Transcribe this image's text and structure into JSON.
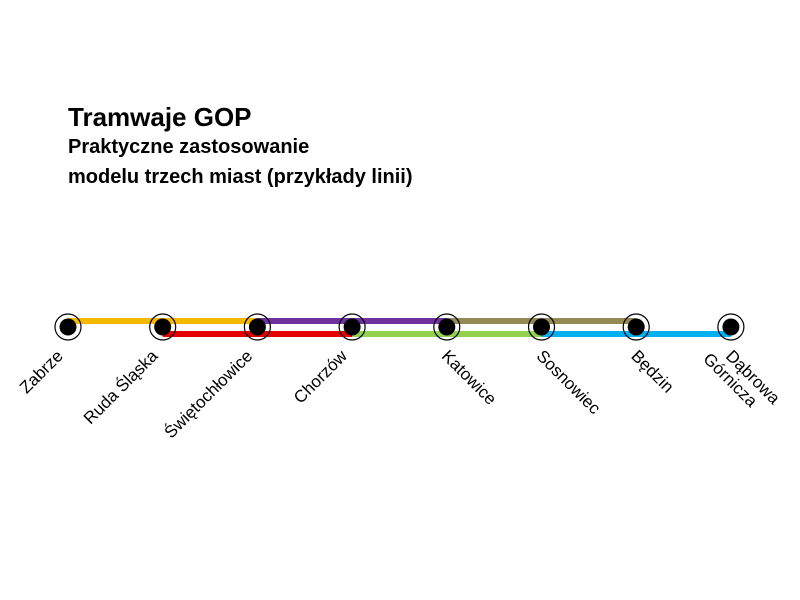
{
  "title": "Tramwaje GOP",
  "subtitle_line1": "Praktyczne zastosowanie",
  "subtitle_line2": "modelu trzech miast (przykłady linii)",
  "stations": [
    {
      "id": "zabrze",
      "lines": [
        "Zabrze"
      ]
    },
    {
      "id": "ruda-slaska",
      "lines": [
        "Ruda Śląska"
      ]
    },
    {
      "id": "swietochlowice",
      "lines": [
        "Świętochłowice"
      ]
    },
    {
      "id": "chorzow",
      "lines": [
        "Chorzów"
      ]
    },
    {
      "id": "katowice",
      "lines": [
        "Katowice"
      ]
    },
    {
      "id": "sosnowiec",
      "lines": [
        "Sosnowiec"
      ]
    },
    {
      "id": "bedzin",
      "lines": [
        "Będzin"
      ]
    },
    {
      "id": "dabrowa-gornicza",
      "lines": [
        "Dąbrowa",
        "Górnicza"
      ]
    }
  ],
  "routes": [
    {
      "from": 0,
      "to": 2,
      "color": "#F5B800",
      "track": "upper"
    },
    {
      "from": 1,
      "to": 3,
      "color": "#E50000",
      "track": "lower"
    },
    {
      "from": 2,
      "to": 4,
      "color": "#7030A0",
      "track": "upper"
    },
    {
      "from": 3,
      "to": 5,
      "color": "#92D050",
      "track": "lower"
    },
    {
      "from": 4,
      "to": 6,
      "color": "#938953",
      "track": "upper"
    },
    {
      "from": 5,
      "to": 7,
      "color": "#00B0F0",
      "track": "lower"
    }
  ]
}
